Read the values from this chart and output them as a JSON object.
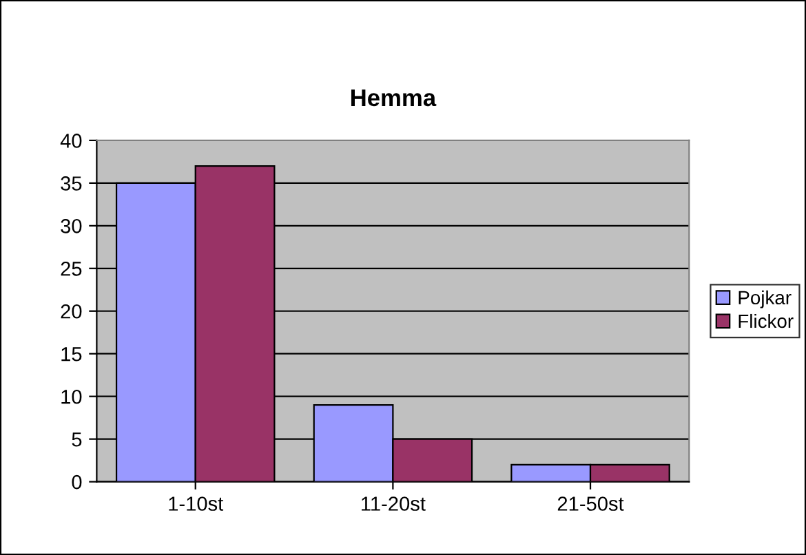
{
  "chart_data": {
    "type": "bar",
    "title": "Hemma",
    "categories": [
      "1-10st",
      "11-20st",
      "21-50st"
    ],
    "series": [
      {
        "name": "Pojkar",
        "color": "#9999ff",
        "values": [
          35,
          9,
          2
        ]
      },
      {
        "name": "Flickor",
        "color": "#993366",
        "values": [
          37,
          5,
          2
        ]
      }
    ],
    "ylim": [
      0,
      40
    ],
    "yticks": [
      0,
      5,
      10,
      15,
      20,
      25,
      30,
      35,
      40
    ],
    "grid": "y",
    "legend": "right"
  }
}
